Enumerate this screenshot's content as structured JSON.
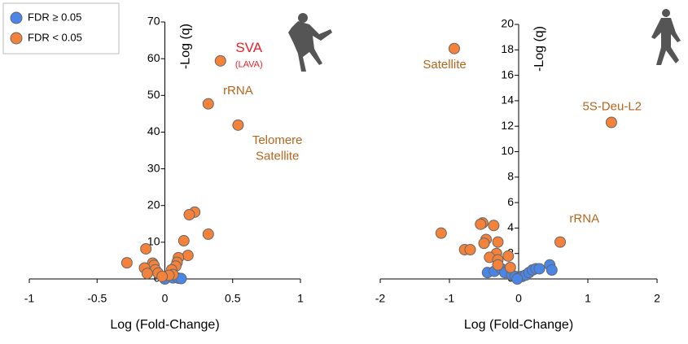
{
  "chart_data": [
    {
      "type": "scatter",
      "xlabel": "Log (Fold-Change)",
      "ylabel": "-Log (q)",
      "xlim": [
        -1,
        1
      ],
      "xticks": [
        -1,
        -0.5,
        0,
        0.5,
        1
      ],
      "ylim": [
        0,
        70
      ],
      "yticks": [
        0,
        10,
        20,
        30,
        40,
        50,
        60,
        70
      ],
      "series": [
        {
          "name": "FDR ≥ 0.05",
          "color": "#4a86e8",
          "x": [
            0,
            0.06,
            0.1,
            0.12
          ],
          "values": [
            0,
            0.3,
            0.2,
            0.1
          ]
        },
        {
          "name": "FDR < 0.05",
          "color": "#f4823a",
          "x": [
            0.41,
            0.32,
            0.54,
            0.22,
            0.18,
            0.32,
            0.14,
            0.17,
            -0.14,
            -0.28,
            0.1,
            0.09,
            0.08,
            -0.09,
            -0.08,
            -0.15,
            -0.07,
            0.05,
            -0.05,
            -0.13,
            0.06,
            0.03,
            -0.02
          ],
          "values": [
            59.4,
            47.7,
            41.9,
            18.2,
            17.5,
            12.2,
            10.4,
            6.4,
            8.2,
            4.4,
            5.8,
            4.5,
            3.5,
            4.3,
            3.7,
            3,
            2.5,
            2.5,
            1.6,
            1.5,
            1.2,
            1,
            0.7
          ]
        }
      ],
      "annotations": [
        {
          "text": "SVA",
          "sub": "(LAVA)",
          "x": 0.62,
          "y": 62.8,
          "color": "#e8202a"
        },
        {
          "text": "rRNA",
          "x": 0.54,
          "y": 51.2,
          "color": "#b5651d"
        },
        {
          "text": "Telomere",
          "x": 0.83,
          "y": 37.7,
          "color": "#b5651d"
        },
        {
          "text": "Satellite",
          "x": 0.83,
          "y": 33.3,
          "color": "#b5651d"
        }
      ]
    },
    {
      "type": "scatter",
      "xlabel": "Log (Fold-Change)",
      "ylabel": "-Log (q)",
      "xlim": [
        -2,
        2
      ],
      "xticks": [
        -2,
        -1,
        0,
        1,
        2
      ],
      "ylim": [
        0,
        20
      ],
      "yticks": [
        0,
        2,
        4,
        6,
        8,
        10,
        12,
        14,
        16,
        18,
        20
      ],
      "series": [
        {
          "color": "#4a86e8",
          "x": [
            -0.45,
            -0.35,
            -0.25,
            -0.2,
            -0.1,
            -0.05,
            0,
            0.05,
            0.1,
            0.15,
            0.2,
            0.25,
            0.3,
            0.45,
            0.48,
            -0.02
          ],
          "values": [
            0.5,
            0.6,
            0.8,
            0.5,
            0.3,
            0.2,
            0.1,
            0.2,
            0.3,
            0.5,
            0.7,
            0.8,
            0.8,
            1.1,
            0.7,
            0
          ]
        },
        {
          "color": "#f4823a",
          "x": [
            -0.93,
            1.34,
            0.6,
            -1.12,
            -0.78,
            -0.7,
            -0.52,
            -0.55,
            -0.36,
            -0.47,
            -0.5,
            -0.3,
            -0.32,
            -0.42,
            -0.3,
            -0.15,
            -0.3,
            -0.12
          ],
          "values": [
            18.1,
            12.3,
            2.9,
            3.6,
            2.3,
            2.3,
            4.4,
            4.3,
            4.2,
            3.1,
            2.8,
            2.9,
            2,
            1.7,
            1.5,
            1.8,
            1.1,
            0.9
          ]
        }
      ],
      "annotations": [
        {
          "text": "Satellite",
          "x": -1.07,
          "y": 16.8,
          "color": "#b5651d"
        },
        {
          "text": "5S-Deu-L2",
          "x": 1.35,
          "y": 13.5,
          "color": "#b5651d"
        },
        {
          "text": "rRNA",
          "x": 0.95,
          "y": 4.7,
          "color": "#b5651d"
        }
      ]
    }
  ]
}
